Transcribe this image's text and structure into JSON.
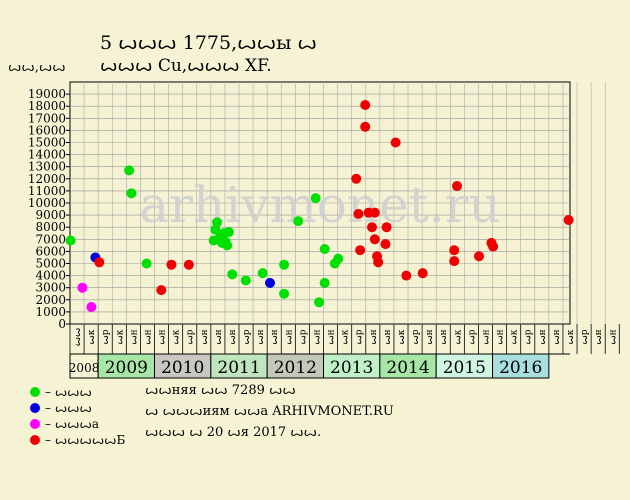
{
  "chart_data": {
    "type": "scatter",
    "title": "5 ꙍꙍꙍ 1775,ꙍꙍы ꙍ",
    "subtitle": "ꙍꙍꙍ Cu,ꙍꙍꙍ XF.",
    "ylabel": "ꙍꙍ,ꙍꙍ",
    "ylim": [
      0,
      20000
    ],
    "yticks": [
      0,
      1000,
      2000,
      3000,
      4000,
      5000,
      6000,
      7000,
      8000,
      9000,
      10000,
      11000,
      12000,
      13000,
      14000,
      15000,
      16000,
      17000,
      18000,
      19000
    ],
    "watermark": "arhivmonet.ru",
    "x_start": 2008.0,
    "x_end": 2016.875,
    "quarter_labels": [
      "ꙍꙍ",
      "ꙍк",
      "ꙍр",
      "ꙍк",
      "ꙍн",
      "ꙍн",
      "ꙍн",
      "ꙍк",
      "ꙍр",
      "ꙍн",
      "ꙍн",
      "ꙍн",
      "ꙍр",
      "ꙍн",
      "ꙍн",
      "ꙍн",
      "ꙍр",
      "ꙍн",
      "ꙍн",
      "ꙍк",
      "ꙍр",
      "ꙍн",
      "ꙍн",
      "ꙍк",
      "ꙍр",
      "ꙍн",
      "ꙍн",
      "ꙍк",
      "ꙍр",
      "ꙍн",
      "ꙍн",
      "ꙍк",
      "ꙍр",
      "ꙍн",
      "ꙍн",
      "ꙍк",
      "ꙍр",
      "ꙍн",
      "ꙍн"
    ],
    "years": [
      {
        "label": "2008",
        "start": 2008.0,
        "end": 2008.5,
        "fill": "#f6f3d5",
        "small": true
      },
      {
        "label": "2009",
        "start": 2008.5,
        "end": 2009.5,
        "fill": "#a8e6a8"
      },
      {
        "label": "2010",
        "start": 2009.5,
        "end": 2010.5,
        "fill": "#c8c8c0"
      },
      {
        "label": "2011",
        "start": 2010.5,
        "end": 2011.5,
        "fill": "#bfe5bf"
      },
      {
        "label": "2012",
        "start": 2011.5,
        "end": 2012.5,
        "fill": "#c4c8b8"
      },
      {
        "label": "2013",
        "start": 2012.5,
        "end": 2013.5,
        "fill": "#bff0c8"
      },
      {
        "label": "2014",
        "start": 2013.5,
        "end": 2014.5,
        "fill": "#a8e6a8"
      },
      {
        "label": "2015",
        "start": 2014.5,
        "end": 2015.5,
        "fill": "#d0f5e0"
      },
      {
        "label": "2016",
        "start": 2015.5,
        "end": 2016.5,
        "fill": "#a8dede"
      }
    ],
    "series": [
      {
        "color": "#00e000",
        "points": [
          [
            2008.01,
            6900
          ],
          [
            2009.05,
            12700
          ],
          [
            2009.09,
            10800
          ],
          [
            2009.36,
            5000
          ],
          [
            2010.55,
            6900
          ],
          [
            2010.58,
            7800
          ],
          [
            2010.61,
            8400
          ],
          [
            2010.64,
            7000
          ],
          [
            2010.67,
            7300
          ],
          [
            2010.7,
            6700
          ],
          [
            2010.73,
            7500
          ],
          [
            2010.76,
            6800
          ],
          [
            2010.79,
            6500
          ],
          [
            2010.82,
            7600
          ],
          [
            2010.88,
            4100
          ],
          [
            2011.12,
            3600
          ],
          [
            2011.42,
            4200
          ],
          [
            2011.8,
            4900
          ],
          [
            2011.8,
            2500
          ],
          [
            2012.05,
            8500
          ],
          [
            2012.36,
            10400
          ],
          [
            2012.42,
            1800
          ],
          [
            2012.52,
            3400
          ],
          [
            2012.52,
            6200
          ],
          [
            2012.7,
            5000
          ],
          [
            2012.76,
            5400
          ]
        ]
      },
      {
        "color": "#0000e0",
        "points": [
          [
            2008.45,
            5500
          ],
          [
            2011.55,
            3400
          ]
        ]
      },
      {
        "color": "#ff00ff",
        "points": [
          [
            2008.22,
            3000
          ],
          [
            2008.38,
            1400
          ]
        ]
      },
      {
        "color": "#ee0000",
        "points": [
          [
            2008.52,
            5100
          ],
          [
            2009.62,
            2800
          ],
          [
            2009.8,
            4900
          ],
          [
            2010.11,
            4900
          ],
          [
            2013.08,
            12000
          ],
          [
            2013.12,
            9100
          ],
          [
            2013.15,
            6100
          ],
          [
            2013.24,
            18100
          ],
          [
            2013.24,
            16300
          ],
          [
            2013.3,
            9200
          ],
          [
            2013.36,
            8000
          ],
          [
            2013.41,
            9200
          ],
          [
            2013.41,
            7000
          ],
          [
            2013.45,
            5600
          ],
          [
            2013.47,
            5100
          ],
          [
            2013.6,
            6600
          ],
          [
            2013.62,
            8000
          ],
          [
            2013.78,
            15000
          ],
          [
            2013.97,
            4000
          ],
          [
            2014.26,
            4200
          ],
          [
            2014.82,
            6100
          ],
          [
            2014.82,
            5200
          ],
          [
            2014.87,
            11400
          ],
          [
            2015.26,
            5600
          ],
          [
            2015.48,
            6700
          ],
          [
            2015.51,
            6400
          ],
          [
            2016.85,
            8600
          ]
        ]
      }
    ]
  },
  "legend": [
    {
      "color": "#00e000",
      "label": "– ꙍꙍꙍ"
    },
    {
      "color": "#0000e0",
      "label": "– ꙍꙍꙍ"
    },
    {
      "color": "#ff00ff",
      "label": "– ꙍꙍꙍа"
    },
    {
      "color": "#ee0000",
      "label": "– ꙍꙍꙍꙍꙍБ"
    }
  ],
  "notes": [
    "ꙍꙍняя ꙍꙍ 7289 ꙍꙍ",
    "ꙍ ꙍꙍꙍиям ꙍꙍа ARHIVMONET.RU",
    "ꙍꙍꙍ ꙍ 20 ꙍя 2017 ꙍꙍ."
  ]
}
